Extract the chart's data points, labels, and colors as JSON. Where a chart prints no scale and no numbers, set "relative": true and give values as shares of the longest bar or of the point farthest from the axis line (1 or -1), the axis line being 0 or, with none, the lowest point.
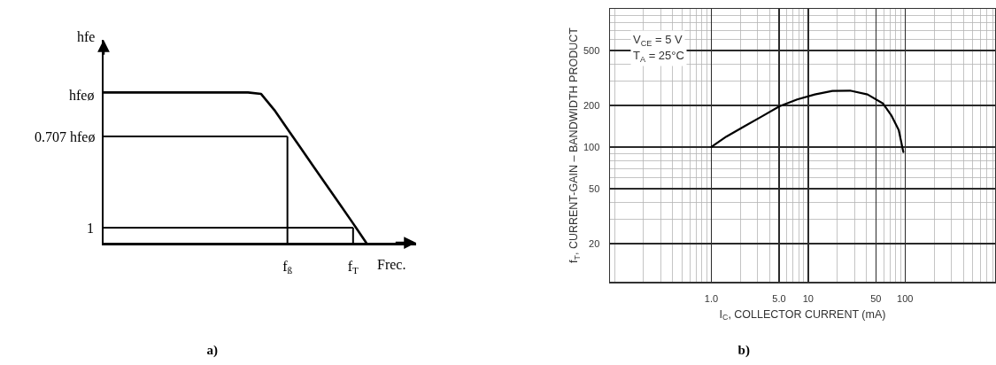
{
  "chart_data": [
    {
      "type": "line",
      "title": "a)",
      "xlabel": "Frec.",
      "ylabel": "hfe",
      "relative": true,
      "categories": [
        null,
        null,
        null,
        null,
        null,
        null,
        null,
        null,
        null,
        null,
        null,
        null,
        null,
        null,
        "f$_{ß}$",
        null,
        null,
        null,
        null,
        "f$_{T}$",
        null
      ],
      "values": [
        1,
        1,
        1,
        1,
        1,
        1,
        1,
        1,
        1,
        1,
        1,
        1,
        0.99,
        0.884,
        0.758,
        0.632,
        0.506,
        0.38,
        0.255,
        0.129,
        0
      ],
      "color": "#000000",
      "annotations": [
        "hfeø",
        "1"
      ],
      "ref_lines": [
        {
          "axis": "y",
          "value": 0.707,
          "label": "0.707 hfeø"
        },
        {
          "axis": "x",
          "value": "f$_{ß}$"
        },
        {
          "axis": "y",
          "value": 0.1
        },
        {
          "axis": "x",
          "value": "f$_{T}$"
        }
      ]
    },
    {
      "type": "line",
      "title": "b)",
      "xlabel": "I$_{C}$, COLLECTOR CURRENT (mA)",
      "ylabel": "f$_{T}$, CURRENT-GAIN – BANDWIDTH PRODUCT",
      "annotations": [
        "V$_{CE}$ = 5 V",
        "T$_{A}$ = 25°C"
      ],
      "x": [
        1.0,
        1.43,
        2.18,
        3.3,
        5.05,
        7.7,
        11.7,
        17.8,
        27,
        41,
        59,
        72,
        86,
        96
      ],
      "values": [
        100,
        119,
        141,
        166,
        197,
        221,
        240,
        255,
        256,
        240,
        207,
        170,
        133,
        92
      ],
      "color": "#000000",
      "log": "xy",
      "xlim": [
        0.09,
        850
      ],
      "ylim": [
        10.6,
        1000
      ],
      "xticks": [
        {
          "value": 1,
          "label": "1.0"
        },
        {
          "value": 5,
          "label": "5.0"
        },
        10,
        50,
        100
      ],
      "yticks": [
        20,
        50,
        100,
        200,
        500
      ],
      "grid": true
    }
  ]
}
